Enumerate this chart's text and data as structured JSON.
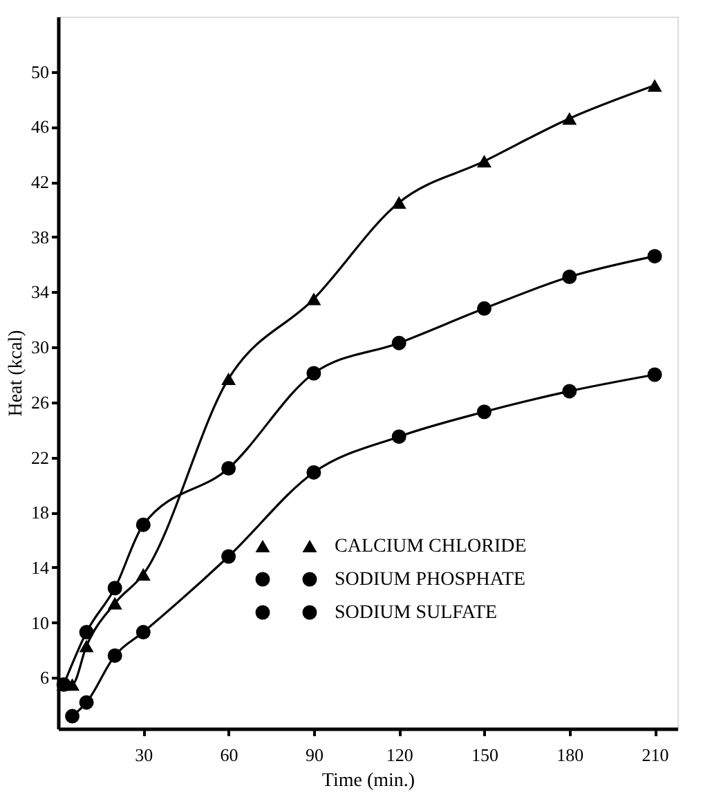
{
  "chart_data": {
    "type": "line",
    "xlabel": "Time (min.)",
    "ylabel": "Heat (kcal)",
    "xlim": [
      0,
      218
    ],
    "ylim": [
      2.3,
      54
    ],
    "xticks": [
      30,
      60,
      90,
      120,
      150,
      180,
      210
    ],
    "yticks": [
      6,
      10,
      14,
      18,
      22,
      26,
      30,
      34,
      38,
      42,
      46,
      50
    ],
    "grid": false,
    "legend": "bottom right",
    "line_style": "solid",
    "series": [
      {
        "name": "CALCIUM CHLORIDE",
        "color": "#000000",
        "marker": "triangle",
        "x": [
          2,
          5,
          10,
          20,
          30,
          60,
          90,
          120,
          150,
          180,
          210
        ],
        "values": [
          5.5,
          5.5,
          8.3,
          11.4,
          13.5,
          27.7,
          33.5,
          40.5,
          43.5,
          46.6,
          49
        ]
      },
      {
        "name": "SODIUM PHOSPHATE",
        "color": "#000000",
        "marker": "circle",
        "x": [
          5,
          10,
          20,
          30,
          60,
          90,
          120,
          150,
          180,
          210
        ],
        "values": [
          3.2,
          4.2,
          7.6,
          9.3,
          14.8,
          20.9,
          23.5,
          25.3,
          26.8,
          28.0
        ]
      },
      {
        "name": "SODIUM SULFATE",
        "color": "#000000",
        "marker": "circle",
        "x": [
          2,
          10,
          20,
          30,
          60,
          90,
          120,
          150,
          180,
          210
        ],
        "values": [
          5.5,
          9.3,
          12.5,
          17.1,
          21.2,
          28.1,
          30.3,
          32.8,
          35.1,
          36.6
        ]
      }
    ]
  }
}
